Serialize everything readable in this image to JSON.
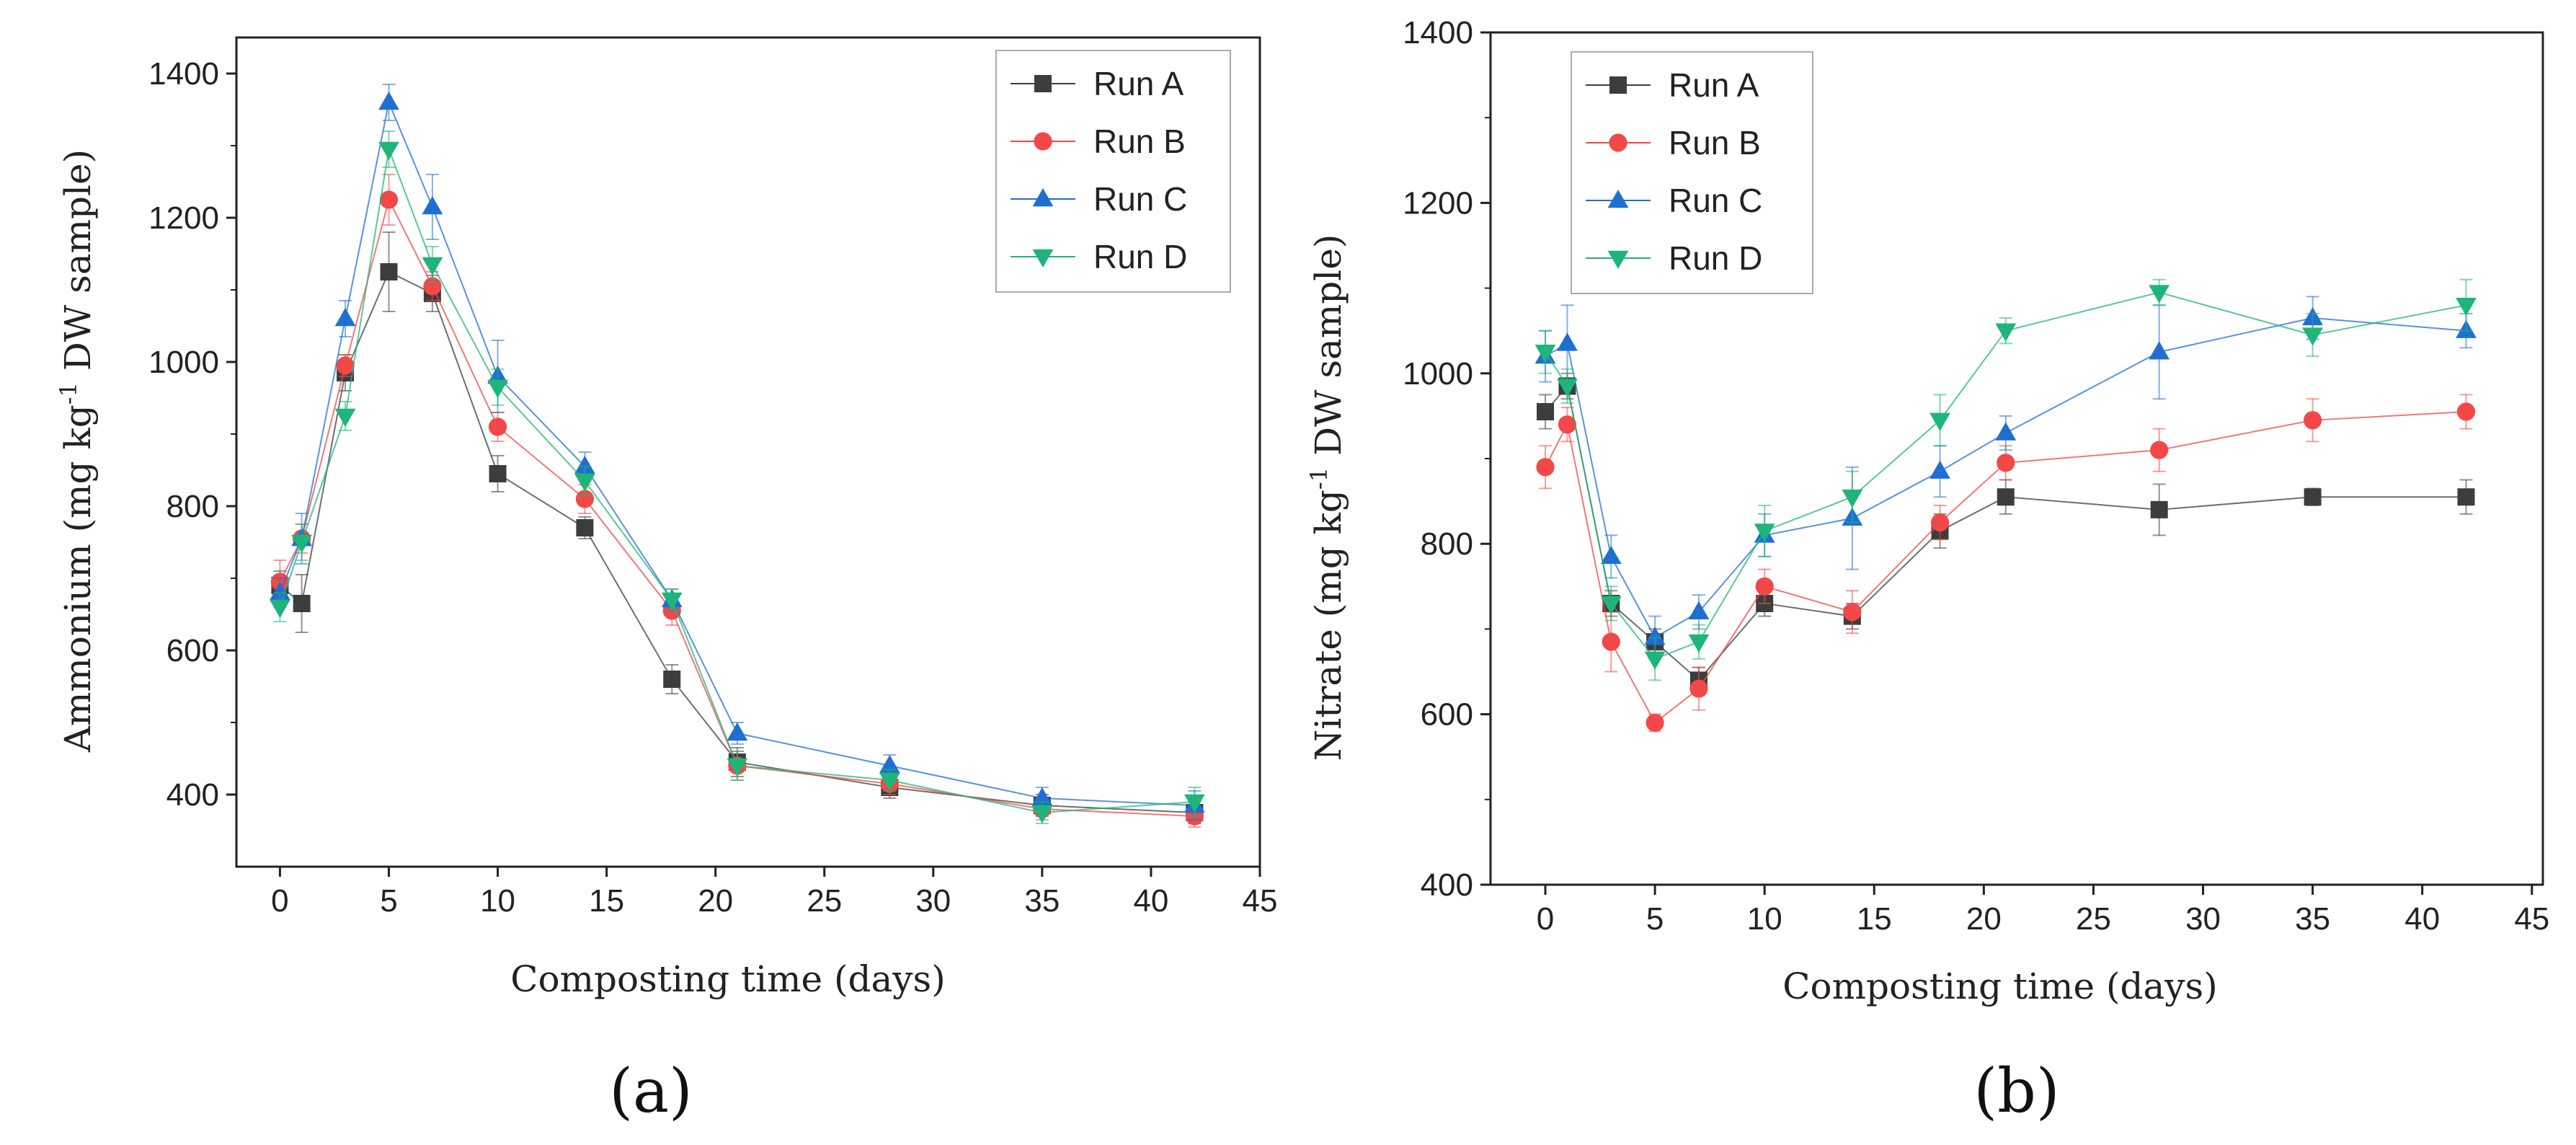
{
  "colors": {
    "Run A": "#3d3d3d",
    "Run B": "#f24848",
    "Run C": "#1f6fd1",
    "Run D": "#1fb57a"
  },
  "chart_data": [
    {
      "type": "line",
      "panel_label": "(a)",
      "xlabel": "Composting time (days)",
      "ylabel_pre": "Ammonium (mg kg",
      "ylabel_sup": "-1",
      "ylabel_post": " DW sample)",
      "xlim": [
        -2,
        45
      ],
      "ylim": [
        300,
        1450
      ],
      "xticks": [
        0,
        5,
        10,
        15,
        20,
        25,
        30,
        35,
        40,
        45
      ],
      "yticks": [
        400,
        600,
        800,
        1000,
        1200,
        1400
      ],
      "legend_position": "top-right",
      "x": [
        0,
        1,
        3,
        5,
        7,
        10,
        14,
        18,
        21,
        28,
        35,
        42
      ],
      "series": [
        {
          "name": "Run A",
          "marker": "square",
          "values": [
            690,
            665,
            985,
            1125,
            1095,
            845,
            770,
            560,
            445,
            410,
            385,
            375
          ],
          "errors": [
            20,
            40,
            25,
            55,
            25,
            25,
            15,
            20,
            20,
            15,
            15,
            15
          ]
        },
        {
          "name": "Run B",
          "marker": "circle",
          "values": [
            695,
            755,
            995,
            1225,
            1105,
            910,
            810,
            655,
            440,
            415,
            380,
            370
          ],
          "errors": [
            30,
            20,
            15,
            35,
            20,
            20,
            20,
            20,
            20,
            15,
            15,
            15
          ]
        },
        {
          "name": "Run C",
          "marker": "triangle-up",
          "values": [
            680,
            755,
            1060,
            1360,
            1215,
            980,
            855,
            670,
            485,
            440,
            395,
            385
          ],
          "errors": [
            20,
            35,
            25,
            25,
            45,
            50,
            20,
            15,
            15,
            15,
            15,
            20
          ]
        },
        {
          "name": "Run D",
          "marker": "triangle-down",
          "values": [
            660,
            750,
            925,
            1295,
            1135,
            965,
            835,
            670,
            440,
            420,
            375,
            390
          ],
          "errors": [
            20,
            25,
            20,
            25,
            25,
            25,
            20,
            15,
            20,
            15,
            15,
            20
          ]
        }
      ]
    },
    {
      "type": "line",
      "panel_label": "(b)",
      "xlabel": "Composting time (days)",
      "ylabel_pre": "Nitrate (mg kg",
      "ylabel_sup": "-1",
      "ylabel_post": " DW sample)",
      "xlim": [
        -2.5,
        45.5
      ],
      "ylim": [
        400,
        1400
      ],
      "xticks": [
        0,
        5,
        10,
        15,
        20,
        25,
        30,
        35,
        40,
        45
      ],
      "yticks": [
        400,
        600,
        800,
        1000,
        1200,
        1400
      ],
      "legend_position": "top-left",
      "x": [
        0,
        1,
        3,
        5,
        7,
        10,
        14,
        18,
        21,
        28,
        35,
        42
      ],
      "series": [
        {
          "name": "Run A",
          "marker": "square",
          "values": [
            955,
            985,
            730,
            685,
            640,
            730,
            715,
            815,
            855,
            840,
            855,
            855
          ],
          "errors": [
            20,
            15,
            15,
            15,
            15,
            15,
            15,
            20,
            20,
            30,
            10,
            20
          ]
        },
        {
          "name": "Run B",
          "marker": "circle",
          "values": [
            890,
            940,
            685,
            590,
            630,
            750,
            720,
            825,
            895,
            910,
            945,
            955
          ],
          "errors": [
            25,
            20,
            35,
            10,
            25,
            20,
            25,
            20,
            20,
            25,
            25,
            20
          ]
        },
        {
          "name": "Run C",
          "marker": "triangle-up",
          "values": [
            1020,
            1035,
            785,
            690,
            720,
            810,
            830,
            885,
            930,
            1025,
            1065,
            1050
          ],
          "errors": [
            30,
            45,
            25,
            25,
            20,
            25,
            60,
            30,
            20,
            55,
            25,
            20
          ]
        },
        {
          "name": "Run D",
          "marker": "triangle-down",
          "values": [
            1025,
            985,
            730,
            665,
            685,
            815,
            855,
            945,
            1050,
            1095,
            1045,
            1080
          ],
          "errors": [
            25,
            20,
            20,
            25,
            20,
            30,
            30,
            30,
            15,
            15,
            25,
            30
          ]
        }
      ]
    }
  ]
}
